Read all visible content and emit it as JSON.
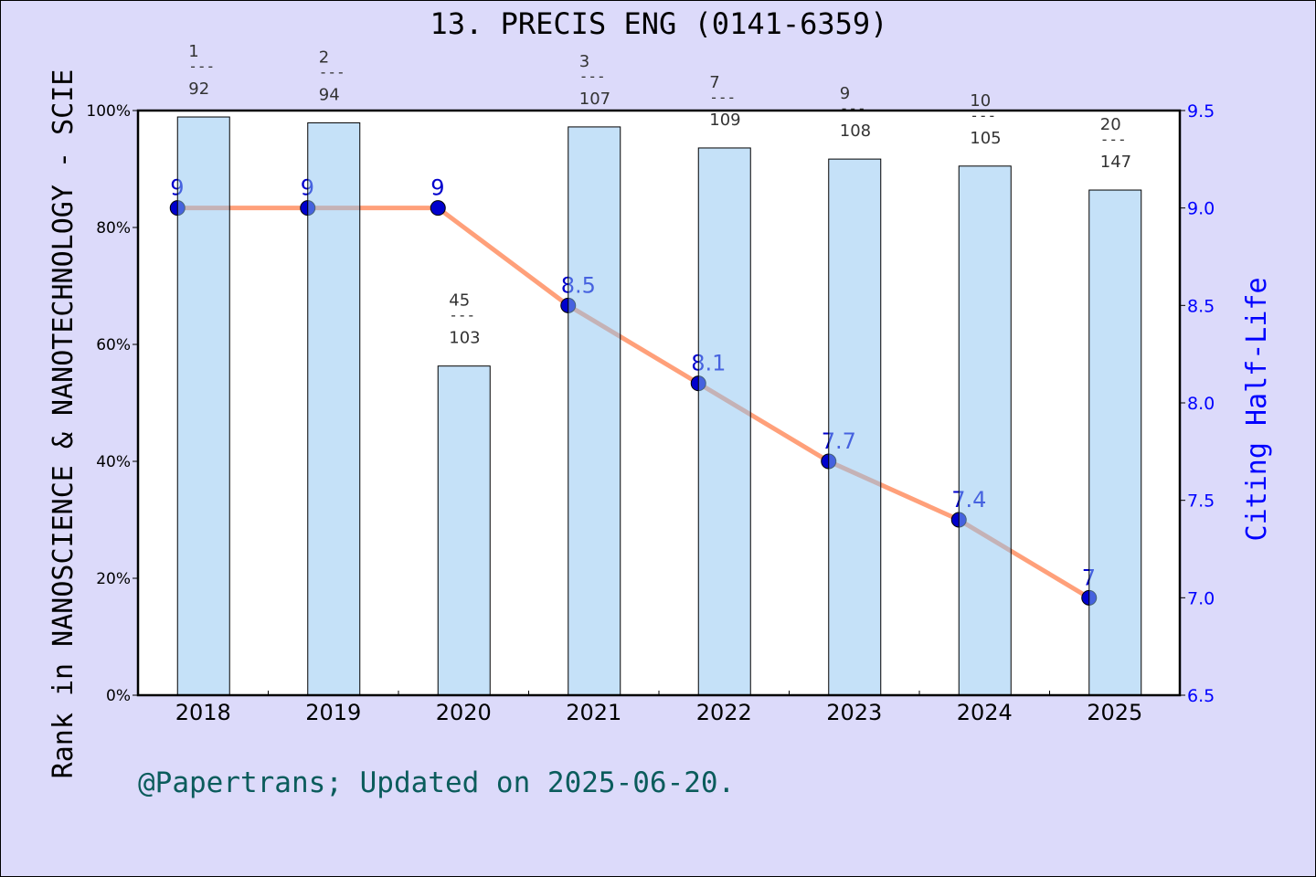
{
  "chart_data": {
    "type": "bar+line",
    "title": "13. PRECIS ENG (0141-6359)",
    "ylabel_left": "Rank in NANOSCIENCE & NANOTECHNOLOGY - SCIE",
    "ylabel_right": "Citing Half-Life",
    "categories": [
      "2018",
      "2019",
      "2020",
      "2021",
      "2022",
      "2023",
      "2024",
      "2025"
    ],
    "ranks": [
      "1",
      "2",
      "45",
      "3",
      "7",
      "9",
      "10",
      "20"
    ],
    "totals": [
      "92",
      "94",
      "103",
      "107",
      "109",
      "108",
      "105",
      "147"
    ],
    "rank_separator": "---",
    "bar_values_percent": [
      98.9,
      97.9,
      56.3,
      97.2,
      93.6,
      91.7,
      90.5,
      86.4
    ],
    "line_values": [
      9,
      9,
      9,
      8.5,
      8.1,
      7.7,
      7.4,
      7
    ],
    "line_labels": [
      "9",
      "9",
      "9",
      "8.5",
      "8.1",
      "7.7",
      "7.4",
      "7"
    ],
    "ylim_left": [
      0,
      100
    ],
    "yticks_left": [
      "0%",
      "20%",
      "40%",
      "60%",
      "80%",
      "100%"
    ],
    "ylim_right": [
      6.5,
      9.5
    ],
    "yticks_right": [
      "6.5",
      "7.0",
      "7.5",
      "8.0",
      "8.5",
      "9.0",
      "9.5"
    ],
    "grid": false,
    "colors": {
      "bar": "#c3dff8",
      "line": "#ffa07a",
      "marker": "#0000cd",
      "right_axis": "#0000ff",
      "footer": "#0b5c5c"
    }
  },
  "footer": "@Papertrans; Updated on 2025-06-20."
}
